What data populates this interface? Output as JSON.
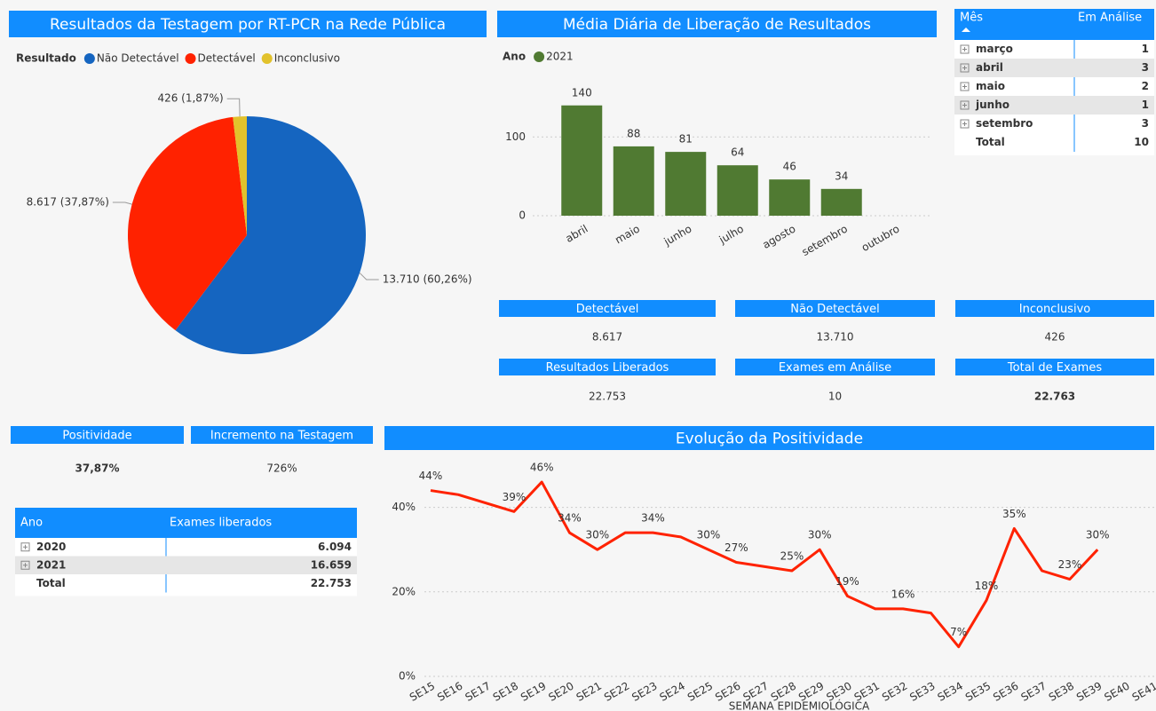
{
  "chart_data": [
    {
      "type": "pie",
      "title": "Resultados da Testagem por RT-PCR na Rede Pública",
      "legend_title": "Resultado",
      "categories": [
        "Não Detectável",
        "Detectável",
        "Inconclusivo"
      ],
      "values": [
        13710,
        8617,
        426
      ],
      "value_labels": [
        "13.710 (60,26%)",
        "8.617 (37,87%)",
        "426 (1,87%)"
      ],
      "colors": [
        "#1565c0",
        "#ff2200",
        "#e2c22c"
      ]
    },
    {
      "type": "bar",
      "title": "Média Diária de Liberação de Resultados",
      "legend_title": "Ano",
      "series": [
        {
          "name": "2021",
          "color": "#507a32",
          "values": [
            140,
            88,
            81,
            64,
            46,
            34,
            null
          ]
        }
      ],
      "categories": [
        "abril",
        "maio",
        "junho",
        "julho",
        "agosto",
        "setembro",
        "outubro"
      ],
      "ylim": [
        0,
        160
      ],
      "yticks": [
        0,
        100
      ],
      "grid": true
    },
    {
      "type": "line",
      "title": "Evolução da Positividade",
      "x_label": "SEMANA EPIDEMIOLÓGICA",
      "categories": [
        "SE15",
        "SE16",
        "SE17",
        "SE18",
        "SE19",
        "SE20",
        "SE21",
        "SE22",
        "SE23",
        "SE24",
        "SE25",
        "SE26",
        "SE27",
        "SE28",
        "SE29",
        "SE30",
        "SE31",
        "SE32",
        "SE33",
        "SE34",
        "SE35",
        "SE36",
        "SE37",
        "SE38",
        "SE39",
        "SE40",
        "SE41"
      ],
      "series": [
        {
          "name": "Positividade",
          "color": "#ff2200",
          "values": [
            44,
            43,
            41,
            39,
            46,
            34,
            30,
            34,
            34,
            33,
            30,
            27,
            26,
            25,
            30,
            19,
            16,
            16,
            15,
            7,
            18,
            35,
            25,
            23,
            30,
            null,
            null
          ],
          "value_labels": [
            "44%",
            null,
            null,
            "39%",
            "46%",
            "34%",
            "30%",
            null,
            "34%",
            null,
            "30%",
            "27%",
            null,
            "25%",
            "30%",
            "19%",
            null,
            "16%",
            null,
            "7%",
            "18%",
            "35%",
            null,
            "23%",
            "30%",
            null,
            null
          ]
        }
      ],
      "ylim": [
        0,
        50
      ],
      "yticks": [
        {
          "value": 0,
          "label": "0%"
        },
        {
          "value": 20,
          "label": "20%"
        },
        {
          "value": 40,
          "label": "40%"
        }
      ],
      "grid": true
    }
  ],
  "cards": [
    {
      "label": "Detectável",
      "value": "8.617"
    },
    {
      "label": "Não Detectável",
      "value": "13.710"
    },
    {
      "label": "Inconclusivo",
      "value": "426"
    },
    {
      "label": "Resultados Liberados",
      "value": "22.753"
    },
    {
      "label": "Exames em Análise",
      "value": "10"
    },
    {
      "label": "Total de Exames",
      "value": "22.763"
    },
    {
      "label": "Positividade",
      "value": "37,87%"
    },
    {
      "label": "Incremento na Testagem",
      "value": "726%"
    }
  ],
  "tables": [
    {
      "columns": [
        "Mês",
        "Em Análise"
      ],
      "rows": [
        [
          "março",
          "1"
        ],
        [
          "abril",
          "3"
        ],
        [
          "maio",
          "2"
        ],
        [
          "junho",
          "1"
        ],
        [
          "setembro",
          "3"
        ]
      ],
      "total": [
        "Total",
        "10"
      ]
    },
    {
      "columns": [
        "Ano",
        "Exames liberados"
      ],
      "rows": [
        [
          "2020",
          "6.094"
        ],
        [
          "2021",
          "16.659"
        ]
      ],
      "total": [
        "Total",
        "22.753"
      ]
    }
  ]
}
